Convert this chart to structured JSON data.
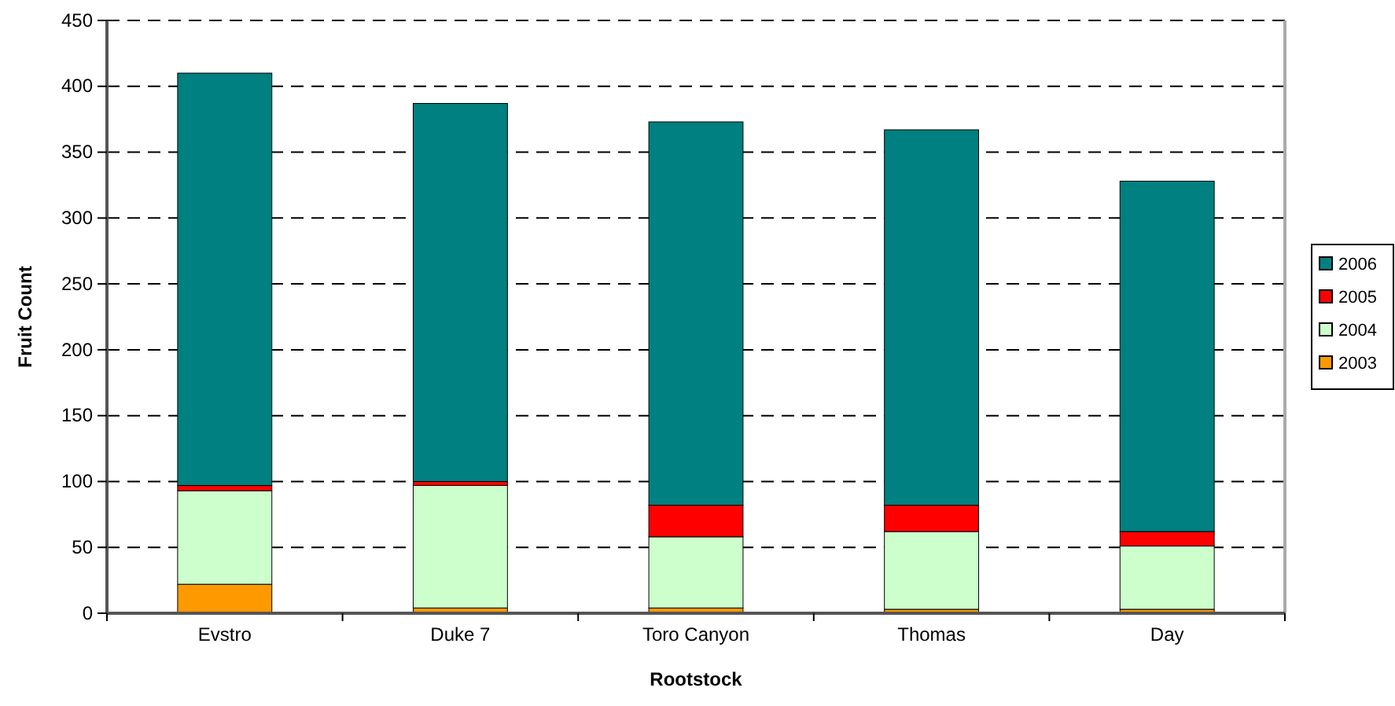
{
  "chart_data": {
    "type": "bar",
    "stacked": true,
    "xlabel": "Rootstock",
    "ylabel": "Fruit Count",
    "categories": [
      "Evstro",
      "Duke 7",
      "Toro Canyon",
      "Thomas",
      "Day"
    ],
    "series": [
      {
        "name": "2003",
        "color": "#ff9900",
        "values": [
          22,
          4,
          4,
          3,
          3
        ]
      },
      {
        "name": "2004",
        "color": "#ccffcc",
        "values": [
          71,
          93,
          54,
          59,
          48
        ]
      },
      {
        "name": "2005",
        "color": "#ff0000",
        "values": [
          4,
          3,
          24,
          20,
          11
        ]
      },
      {
        "name": "2006",
        "color": "#008080",
        "values": [
          313,
          287,
          291,
          285,
          266
        ]
      }
    ],
    "ylim": [
      0,
      450
    ],
    "yticks": [
      0,
      50,
      100,
      150,
      200,
      250,
      300,
      350,
      400,
      450
    ],
    "grid": "y",
    "legend": "right"
  }
}
